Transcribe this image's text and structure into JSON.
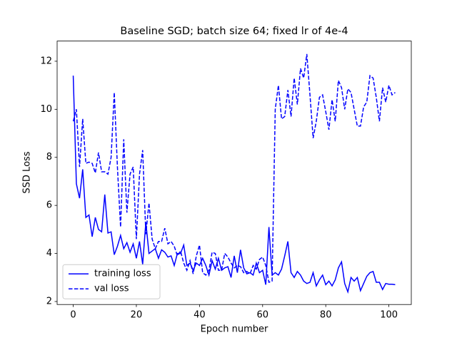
{
  "chart_data": {
    "type": "line",
    "title": "Baseline SGD; batch size 64; fixed lr of 4e-4",
    "x_label": "Epoch number",
    "y_label": "SSD Loss",
    "x": [
      0,
      1,
      2,
      3,
      4,
      5,
      6,
      7,
      8,
      9,
      10,
      11,
      12,
      13,
      14,
      15,
      16,
      17,
      18,
      19,
      20,
      21,
      22,
      23,
      24,
      25,
      26,
      27,
      28,
      29,
      30,
      31,
      32,
      33,
      34,
      35,
      36,
      37,
      38,
      39,
      40,
      41,
      42,
      43,
      44,
      45,
      46,
      47,
      48,
      49,
      50,
      51,
      52,
      53,
      54,
      55,
      56,
      57,
      58,
      59,
      60,
      61,
      62,
      63,
      64,
      65,
      66,
      67,
      68,
      69,
      70,
      71,
      72,
      73,
      74,
      75,
      76,
      77,
      78,
      79,
      80,
      81,
      82,
      83,
      84,
      85,
      86,
      87,
      88,
      89,
      90,
      91,
      92,
      93,
      94,
      95,
      96,
      97,
      98,
      99,
      100,
      101,
      102
    ],
    "series": [
      {
        "name": "training loss",
        "color": "#0000ff",
        "linestyle": "solid",
        "values": [
          11.4,
          6.9,
          6.3,
          7.5,
          5.5,
          5.6,
          4.7,
          5.5,
          5.0,
          4.9,
          6.45,
          4.85,
          4.9,
          3.95,
          4.3,
          4.75,
          4.2,
          4.45,
          4.05,
          4.4,
          3.8,
          4.5,
          3.55,
          5.3,
          4.0,
          4.1,
          4.2,
          3.8,
          4.15,
          4.05,
          3.85,
          3.9,
          3.5,
          4.0,
          4.0,
          4.35,
          3.5,
          3.6,
          3.3,
          3.6,
          3.5,
          3.8,
          3.5,
          3.1,
          3.7,
          3.35,
          3.8,
          3.3,
          3.4,
          3.45,
          3.0,
          3.9,
          3.2,
          4.15,
          3.4,
          3.15,
          3.2,
          3.1,
          3.6,
          3.2,
          3.3,
          2.7,
          5.1,
          3.1,
          3.2,
          3.1,
          3.35,
          3.9,
          4.5,
          3.2,
          3.0,
          3.25,
          3.1,
          2.85,
          2.75,
          2.8,
          3.2,
          2.65,
          2.9,
          3.1,
          2.7,
          2.85,
          2.65,
          2.9,
          3.4,
          3.65,
          2.75,
          2.4,
          3.0,
          2.85,
          3.0,
          2.45,
          2.75,
          3.05,
          3.2,
          3.25,
          2.8,
          2.8,
          2.5,
          2.75,
          2.72,
          2.72,
          2.7
        ]
      },
      {
        "name": "val loss",
        "color": "#0000ff",
        "linestyle": "dashed",
        "values": [
          9.5,
          10.0,
          7.6,
          9.6,
          7.75,
          7.8,
          7.75,
          7.35,
          8.2,
          7.4,
          7.4,
          7.3,
          8.0,
          10.7,
          7.6,
          5.1,
          8.75,
          5.7,
          7.3,
          7.6,
          4.6,
          7.3,
          8.3,
          4.8,
          6.1,
          4.6,
          4.2,
          4.5,
          4.5,
          5.05,
          4.4,
          4.5,
          4.3,
          3.9,
          4.1,
          3.6,
          3.3,
          3.7,
          3.15,
          3.9,
          4.35,
          3.2,
          3.1,
          3.3,
          4.05,
          4.0,
          3.3,
          3.3,
          4.0,
          3.85,
          3.6,
          3.4,
          3.5,
          3.45,
          3.2,
          3.25,
          3.15,
          3.5,
          3.35,
          3.75,
          3.85,
          3.5,
          2.8,
          2.85,
          10.0,
          11.0,
          9.6,
          9.7,
          10.8,
          9.7,
          11.3,
          10.2,
          11.7,
          11.3,
          12.3,
          10.6,
          8.8,
          9.5,
          10.5,
          10.6,
          9.9,
          9.15,
          10.4,
          9.5,
          11.2,
          10.9,
          10.0,
          10.85,
          10.7,
          10.0,
          9.3,
          9.3,
          10.1,
          10.3,
          11.4,
          11.3,
          10.5,
          9.5,
          10.9,
          10.3,
          11.0,
          10.6,
          10.7
        ]
      }
    ],
    "xlim": [
      -5.1,
      107.1
    ],
    "xticks": [
      0,
      20,
      40,
      60,
      80,
      100
    ],
    "ylim": [
      1.875,
      12.84
    ],
    "yticks": [
      2,
      4,
      6,
      8,
      10,
      12
    ],
    "legend": "lower left"
  }
}
